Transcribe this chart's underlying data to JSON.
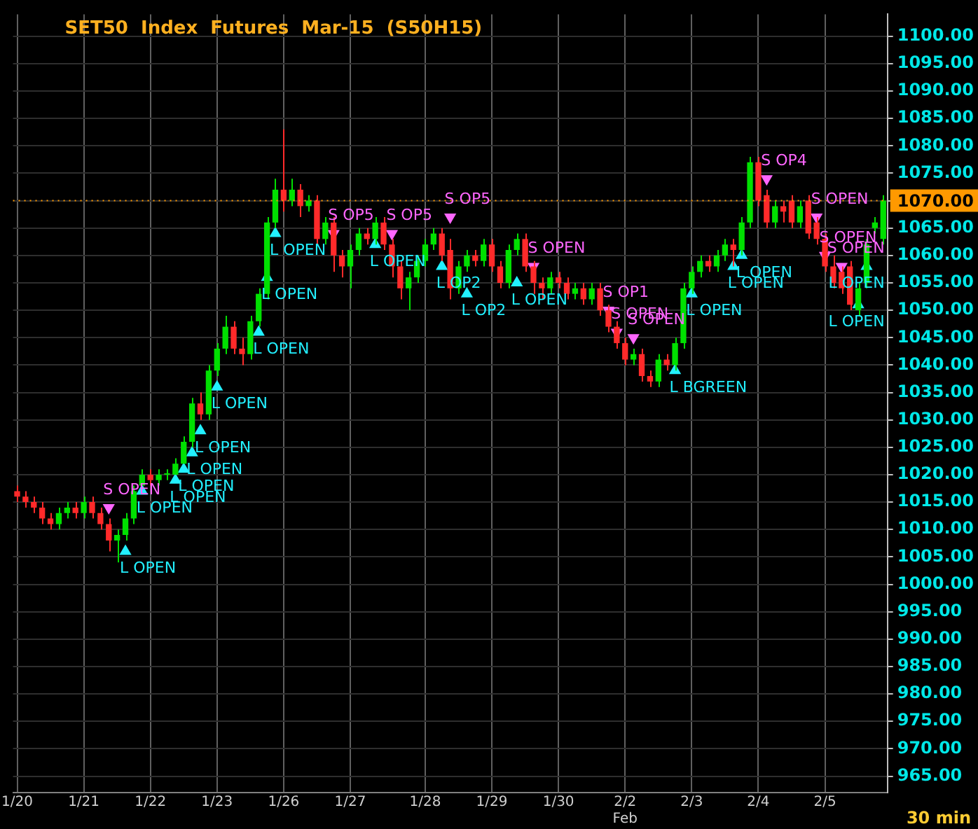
{
  "chart_data": {
    "type": "candlestick",
    "title": "SET50  Index  Futures  Mar-15  (S50H15)",
    "categories": [
      "1/20",
      null,
      null,
      null,
      null,
      null,
      null,
      null,
      "1/21",
      null,
      null,
      null,
      null,
      null,
      null,
      null,
      "1/22",
      null,
      null,
      null,
      null,
      null,
      null,
      null,
      "1/23",
      null,
      null,
      null,
      null,
      null,
      null,
      null,
      "1/26",
      null,
      null,
      null,
      null,
      null,
      null,
      null,
      "1/27",
      null,
      null,
      null,
      null,
      null,
      null,
      null,
      null,
      "1/28",
      null,
      null,
      null,
      null,
      null,
      null,
      null,
      "1/29",
      null,
      null,
      null,
      null,
      null,
      null,
      null,
      "1/30",
      null,
      null,
      null,
      null,
      null,
      null,
      null,
      "2/2\nFeb",
      null,
      null,
      null,
      null,
      null,
      null,
      null,
      "2/3",
      null,
      null,
      null,
      null,
      null,
      null,
      null,
      "2/4",
      null,
      null,
      null,
      null,
      null,
      null,
      null,
      "2/5",
      null,
      null,
      null,
      null,
      null,
      null,
      null
    ],
    "ohlc": [
      [
        1017,
        1018,
        1015,
        1016
      ],
      [
        1016,
        1017,
        1014,
        1015
      ],
      [
        1015,
        1016,
        1013,
        1014
      ],
      [
        1014,
        1015,
        1011,
        1012
      ],
      [
        1012,
        1013,
        1010,
        1011
      ],
      [
        1011,
        1014,
        1010,
        1013
      ],
      [
        1013,
        1015,
        1012,
        1014
      ],
      [
        1014,
        1015,
        1012,
        1013
      ],
      [
        1013,
        1016,
        1012,
        1015
      ],
      [
        1015,
        1016,
        1012,
        1013
      ],
      [
        1013,
        1014,
        1010,
        1011
      ],
      [
        1011,
        1012,
        1006,
        1008
      ],
      [
        1008,
        1010,
        1004,
        1009
      ],
      [
        1009,
        1013,
        1008,
        1012
      ],
      [
        1012,
        1018,
        1011,
        1017
      ],
      [
        1018,
        1021,
        1018,
        1020
      ],
      [
        1020,
        1021,
        1018,
        1019
      ],
      [
        1019,
        1021,
        1018,
        1020
      ],
      [
        1020,
        1021,
        1019,
        1020
      ],
      [
        1020,
        1023,
        1020,
        1022
      ],
      [
        1022,
        1027,
        1022,
        1026
      ],
      [
        1026,
        1034,
        1025,
        1033
      ],
      [
        1033,
        1035,
        1030,
        1031
      ],
      [
        1031,
        1040,
        1030,
        1039
      ],
      [
        1039,
        1044,
        1038,
        1043
      ],
      [
        1043,
        1049,
        1042,
        1047
      ],
      [
        1047,
        1048,
        1042,
        1043
      ],
      [
        1043,
        1045,
        1040,
        1042
      ],
      [
        1042,
        1049,
        1041,
        1048
      ],
      [
        1048,
        1054,
        1047,
        1053
      ],
      [
        1053,
        1067,
        1052,
        1066
      ],
      [
        1066,
        1074,
        1065,
        1072
      ],
      [
        1072,
        1083,
        1068,
        1070
      ],
      [
        1070,
        1074,
        1069,
        1072
      ],
      [
        1072,
        1073,
        1067,
        1069
      ],
      [
        1069,
        1071,
        1068,
        1070
      ],
      [
        1070,
        1071,
        1062,
        1063
      ],
      [
        1063,
        1067,
        1062,
        1066
      ],
      [
        1066,
        1067,
        1057,
        1060
      ],
      [
        1060,
        1061,
        1056,
        1058
      ],
      [
        1058,
        1062,
        1054,
        1061
      ],
      [
        1061,
        1065,
        1060,
        1064
      ],
      [
        1064,
        1065,
        1062,
        1063
      ],
      [
        1063,
        1067,
        1062,
        1066
      ],
      [
        1066,
        1067,
        1061,
        1062
      ],
      [
        1062,
        1063,
        1056,
        1058
      ],
      [
        1058,
        1059,
        1052,
        1054
      ],
      [
        1054,
        1057,
        1050,
        1056
      ],
      [
        1056,
        1060,
        1055,
        1059
      ],
      [
        1059,
        1063,
        1058,
        1062
      ],
      [
        1062,
        1065,
        1061,
        1064
      ],
      [
        1064,
        1065,
        1059,
        1060
      ],
      [
        1061,
        1063,
        1052,
        1054
      ],
      [
        1054,
        1059,
        1053,
        1058
      ],
      [
        1058,
        1061,
        1057,
        1060
      ],
      [
        1060,
        1061,
        1058,
        1059
      ],
      [
        1059,
        1063,
        1058,
        1062
      ],
      [
        1062,
        1063,
        1057,
        1058
      ],
      [
        1058,
        1059,
        1054,
        1055
      ],
      [
        1055,
        1062,
        1054,
        1061
      ],
      [
        1061,
        1064,
        1060,
        1063
      ],
      [
        1063,
        1064,
        1057,
        1058
      ],
      [
        1058,
        1059,
        1053,
        1055
      ],
      [
        1055,
        1056,
        1052,
        1054
      ],
      [
        1054,
        1057,
        1053,
        1056
      ],
      [
        1056,
        1057,
        1054,
        1055
      ],
      [
        1055,
        1056,
        1052,
        1053
      ],
      [
        1053,
        1055,
        1052,
        1054
      ],
      [
        1054,
        1055,
        1051,
        1052
      ],
      [
        1052,
        1055,
        1051,
        1054
      ],
      [
        1054,
        1055,
        1049,
        1050
      ],
      [
        1050,
        1051,
        1046,
        1047
      ],
      [
        1047,
        1048,
        1043,
        1044
      ],
      [
        1044,
        1045,
        1040,
        1041
      ],
      [
        1041,
        1043,
        1040,
        1042
      ],
      [
        1042,
        1043,
        1037,
        1038
      ],
      [
        1038,
        1039,
        1036,
        1037
      ],
      [
        1037,
        1042,
        1036,
        1041
      ],
      [
        1041,
        1042,
        1039,
        1040
      ],
      [
        1040,
        1045,
        1039,
        1044
      ],
      [
        1044,
        1055,
        1043,
        1054
      ],
      [
        1054,
        1058,
        1053,
        1057
      ],
      [
        1057,
        1060,
        1056,
        1059
      ],
      [
        1059,
        1060,
        1057,
        1058
      ],
      [
        1058,
        1061,
        1057,
        1060
      ],
      [
        1060,
        1063,
        1059,
        1062
      ],
      [
        1062,
        1063,
        1058,
        1061
      ],
      [
        1061,
        1067,
        1060,
        1066
      ],
      [
        1066,
        1078,
        1065,
        1077
      ],
      [
        1077,
        1078,
        1069,
        1070
      ],
      [
        1071,
        1072,
        1065,
        1066
      ],
      [
        1066,
        1070,
        1065,
        1069
      ],
      [
        1069,
        1070,
        1066,
        1068
      ],
      [
        1070,
        1071,
        1065,
        1066
      ],
      [
        1066,
        1070,
        1065,
        1069
      ],
      [
        1070,
        1071,
        1063,
        1064
      ],
      [
        1066,
        1067,
        1062,
        1063
      ],
      [
        1063,
        1064,
        1057,
        1058
      ],
      [
        1058,
        1060,
        1054,
        1055
      ],
      [
        1057,
        1058,
        1053,
        1054
      ],
      [
        1058,
        1059,
        1050,
        1051
      ],
      [
        1050,
        1055,
        1049,
        1054
      ],
      [
        1055,
        1063,
        1054,
        1062
      ],
      [
        1065,
        1067,
        1064,
        1066
      ],
      [
        1063,
        1071,
        1062,
        1070
      ]
    ],
    "colors": [
      "#ff2a2a",
      "#ff2a2a",
      "#ff2a2a",
      "#ff2a2a",
      "#ff2a2a",
      "#00e000",
      "#00e000",
      "#ff2a2a",
      "#00e000",
      "#ff2a2a",
      "#ff2a2a",
      "#ff2a2a",
      "#00e000",
      "#00e000",
      "#00e000",
      "#00e000",
      "#ff2a2a",
      "#00e000",
      "#00e000",
      "#00e000",
      "#00e000",
      "#00e000",
      "#ff2a2a",
      "#00e000",
      "#00e000",
      "#00e000",
      "#ff2a2a",
      "#ff2a2a",
      "#00e000",
      "#00e000",
      "#00e000",
      "#00e000",
      "#ff2a2a",
      "#00e000",
      "#ff2a2a",
      "#00e000",
      "#ff2a2a",
      "#00e000",
      "#ff2a2a",
      "#ff2a2a",
      "#00e000",
      "#00e000",
      "#ff2a2a",
      "#00e000",
      "#ff2a2a",
      "#ff2a2a",
      "#ff2a2a",
      "#00e000",
      "#00e000",
      "#00e000",
      "#00e000",
      "#ff2a2a",
      "#ff2a2a",
      "#00e000",
      "#00e000",
      "#ff2a2a",
      "#00e000",
      "#ff2a2a",
      "#ff2a2a",
      "#00e000",
      "#00e000",
      "#ff2a2a",
      "#ff2a2a",
      "#ff2a2a",
      "#00e000",
      "#ff2a2a",
      "#ff2a2a",
      "#00e000",
      "#ff2a2a",
      "#00e000",
      "#ff2a2a",
      "#ff2a2a",
      "#ff2a2a",
      "#ff2a2a",
      "#00e000",
      "#ff2a2a",
      "#ff2a2a",
      "#00e000",
      "#ff2a2a",
      "#00e000",
      "#00e000",
      "#00e000",
      "#00e000",
      "#ff2a2a",
      "#00e000",
      "#00e000",
      "#ff2a2a",
      "#00e000",
      "#00e000",
      "#ff2a2a",
      "#ff2a2a",
      "#00e000",
      "#ff2a2a",
      "#ff2a2a",
      "#00e000",
      "#ff2a2a",
      "#ff2a2a",
      "#ff2a2a",
      "#ff2a2a",
      "#ff2a2a",
      "#ff2a2a",
      "#00e000",
      "#00e000",
      "#00e000",
      "#00e000"
    ],
    "series": [
      {
        "type": "scatter",
        "color": "#ff66ff",
        "marker": "triangle",
        "values": [
          null,
          null,
          null,
          null,
          null,
          null,
          null,
          null,
          null,
          null,
          null,
          1014,
          null,
          null,
          null,
          null,
          null,
          null,
          null,
          null,
          null,
          null,
          null,
          null,
          null,
          null,
          null,
          null,
          null,
          null,
          null,
          null,
          null,
          null,
          null,
          null,
          null,
          null,
          1064,
          null,
          null,
          null,
          null,
          null,
          null,
          1064,
          null,
          null,
          null,
          null,
          null,
          null,
          1067,
          null,
          null,
          null,
          null,
          null,
          null,
          null,
          null,
          null,
          1058,
          null,
          null,
          null,
          null,
          null,
          null,
          null,
          null,
          1050,
          1046,
          null,
          1045,
          null,
          null,
          null,
          null,
          null,
          null,
          null,
          null,
          null,
          null,
          null,
          null,
          null,
          null,
          null,
          1074,
          null,
          null,
          null,
          null,
          null,
          1067,
          1060,
          null,
          1058,
          null,
          null,
          null,
          null,
          null
        ],
        "value_labels": [
          null,
          null,
          null,
          null,
          null,
          null,
          null,
          null,
          null,
          null,
          null,
          "S OPEN",
          null,
          null,
          null,
          null,
          null,
          null,
          null,
          null,
          null,
          null,
          null,
          null,
          null,
          null,
          null,
          null,
          null,
          null,
          null,
          null,
          null,
          null,
          null,
          null,
          null,
          null,
          "S OP5",
          null,
          null,
          null,
          null,
          null,
          null,
          "S OP5",
          null,
          null,
          null,
          null,
          null,
          null,
          "S OP5",
          null,
          null,
          null,
          null,
          null,
          null,
          null,
          null,
          null,
          "S OPEN",
          null,
          null,
          null,
          null,
          null,
          null,
          null,
          null,
          "S OP1",
          "S OPEN",
          null,
          "S OPEN",
          null,
          null,
          null,
          null,
          null,
          null,
          null,
          null,
          null,
          null,
          null,
          null,
          null,
          null,
          null,
          "S OP4",
          null,
          null,
          null,
          null,
          null,
          "S OPEN",
          "S OPEN",
          null,
          "S OPEN",
          null,
          null,
          null,
          null,
          null
        ]
      },
      {
        "type": "scatter",
        "color": "#22f0ff",
        "marker": "triangle",
        "values": [
          null,
          null,
          null,
          null,
          null,
          null,
          null,
          null,
          null,
          null,
          null,
          null,
          null,
          1006,
          null,
          1017,
          null,
          null,
          null,
          1019,
          1021,
          1024,
          1028,
          null,
          1036,
          null,
          null,
          null,
          null,
          1046,
          1056,
          1064,
          null,
          null,
          null,
          null,
          null,
          null,
          null,
          null,
          null,
          null,
          null,
          1062,
          null,
          null,
          null,
          null,
          null,
          null,
          null,
          1058,
          null,
          null,
          1053,
          null,
          null,
          null,
          null,
          null,
          1055,
          null,
          null,
          null,
          null,
          null,
          null,
          null,
          null,
          null,
          null,
          null,
          null,
          null,
          null,
          null,
          null,
          null,
          null,
          1039,
          null,
          1053,
          null,
          null,
          null,
          null,
          1058,
          1060,
          null,
          null,
          null,
          null,
          null,
          null,
          null,
          null,
          null,
          null,
          null,
          null,
          null,
          1051,
          1058,
          null,
          null
        ],
        "value_labels": [
          null,
          null,
          null,
          null,
          null,
          null,
          null,
          null,
          null,
          null,
          null,
          null,
          null,
          "L OPEN",
          null,
          "L OPEN",
          null,
          null,
          null,
          "L OPEN",
          "L OPEN",
          "L OPEN",
          "L OPEN",
          null,
          "L OPEN",
          null,
          null,
          null,
          null,
          "L OPEN",
          "L OPEN",
          "L OPEN",
          null,
          null,
          null,
          null,
          null,
          null,
          null,
          null,
          null,
          null,
          null,
          "L OPEN",
          null,
          null,
          null,
          null,
          null,
          null,
          null,
          "L OP2",
          null,
          null,
          "L OP2",
          null,
          null,
          null,
          null,
          null,
          "L OPEN",
          null,
          null,
          null,
          null,
          null,
          null,
          null,
          null,
          null,
          null,
          null,
          null,
          null,
          null,
          null,
          null,
          null,
          null,
          "L BGREEN",
          null,
          "L OPEN",
          null,
          null,
          null,
          null,
          "L OPEN",
          "L OPEN",
          null,
          null,
          null,
          null,
          null,
          null,
          null,
          null,
          null,
          null,
          null,
          null,
          null,
          "L OPEN",
          "L OPEN",
          null,
          null
        ]
      }
    ],
    "ylim": [
      962,
      1104
    ],
    "yticks": [
      {
        "value": 965,
        "label": "965.00"
      },
      {
        "value": 970,
        "label": "970.00"
      },
      {
        "value": 975,
        "label": "975.00"
      },
      {
        "value": 980,
        "label": "980.00"
      },
      {
        "value": 985,
        "label": "985.00"
      },
      {
        "value": 990,
        "label": "990.00"
      },
      {
        "value": 995,
        "label": "995.00"
      },
      {
        "value": 1000,
        "label": "1000.00"
      },
      {
        "value": 1005,
        "label": "1005.00"
      },
      {
        "value": 1010,
        "label": "1010.00"
      },
      {
        "value": 1015,
        "label": "1015.00"
      },
      {
        "value": 1020,
        "label": "1020.00"
      },
      {
        "value": 1025,
        "label": "1025.00"
      },
      {
        "value": 1030,
        "label": "1030.00"
      },
      {
        "value": 1035,
        "label": "1035.00"
      },
      {
        "value": 1040,
        "label": "1040.00"
      },
      {
        "value": 1045,
        "label": "1045.00"
      },
      {
        "value": 1050,
        "label": "1050.00"
      },
      {
        "value": 1055,
        "label": "1055.00"
      },
      {
        "value": 1060,
        "label": "1060.00"
      },
      {
        "value": 1065,
        "label": "1065.00"
      },
      {
        "value": 1070,
        "label": "1070.00"
      },
      {
        "value": 1075,
        "label": "1075.00"
      },
      {
        "value": 1080,
        "label": "1080.00"
      },
      {
        "value": 1085,
        "label": "1085.00"
      },
      {
        "value": 1090,
        "label": "1090.00"
      },
      {
        "value": 1095,
        "label": "1095.00"
      },
      {
        "value": 1100,
        "label": "1100.00"
      }
    ],
    "ref_lines": [
      {
        "axis": "y",
        "value": 1070,
        "label": "1070.00",
        "color": "#ff9900"
      }
    ],
    "grid": true,
    "annotations": [
      "30 min"
    ]
  }
}
